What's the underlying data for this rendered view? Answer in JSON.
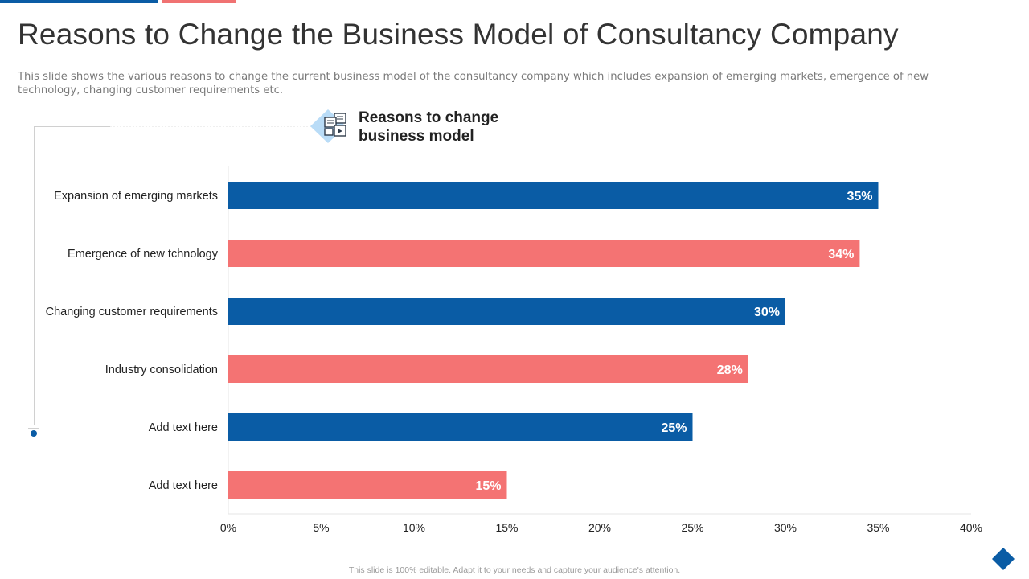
{
  "title": "Reasons to Change the Business Model of Consultancy Company",
  "subtitle": "This slide shows the various reasons to change the current business model of the consultancy company which includes expansion of emerging markets, emergence of new technology, changing customer requirements etc.",
  "chart_heading_line1": "Reasons to change",
  "chart_heading_line2": "business model",
  "footer_note": "This slide is 100% editable. Adapt it to your needs and capture your audience's attention.",
  "icons": {
    "header": "dashboard-screens-icon",
    "corner": "diamond-icon"
  },
  "colors": {
    "blue": "#0a5ca5",
    "red": "#f47373",
    "text": "#222222"
  },
  "chart_data": {
    "type": "bar",
    "orientation": "horizontal",
    "title": "Reasons to change business model",
    "categories": [
      "Expansion of emerging markets",
      "Emergence of new tchnology",
      "Changing customer requirements",
      "Industry consolidation",
      "Add text here",
      "Add text here"
    ],
    "values": [
      35,
      34,
      30,
      28,
      25,
      15
    ],
    "value_labels": [
      "35%",
      "34%",
      "30%",
      "28%",
      "25%",
      "15%"
    ],
    "bar_colors": [
      "#0a5ca5",
      "#f47373",
      "#0a5ca5",
      "#f47373",
      "#0a5ca5",
      "#f47373"
    ],
    "xlim": [
      0,
      40
    ],
    "xticks": [
      0,
      5,
      10,
      15,
      20,
      25,
      30,
      35,
      40
    ],
    "xtick_labels": [
      "0%",
      "5%",
      "10%",
      "15%",
      "20%",
      "25%",
      "30%",
      "35%",
      "40%"
    ],
    "xlabel": "",
    "ylabel": "",
    "grid": false,
    "legend": "none"
  }
}
